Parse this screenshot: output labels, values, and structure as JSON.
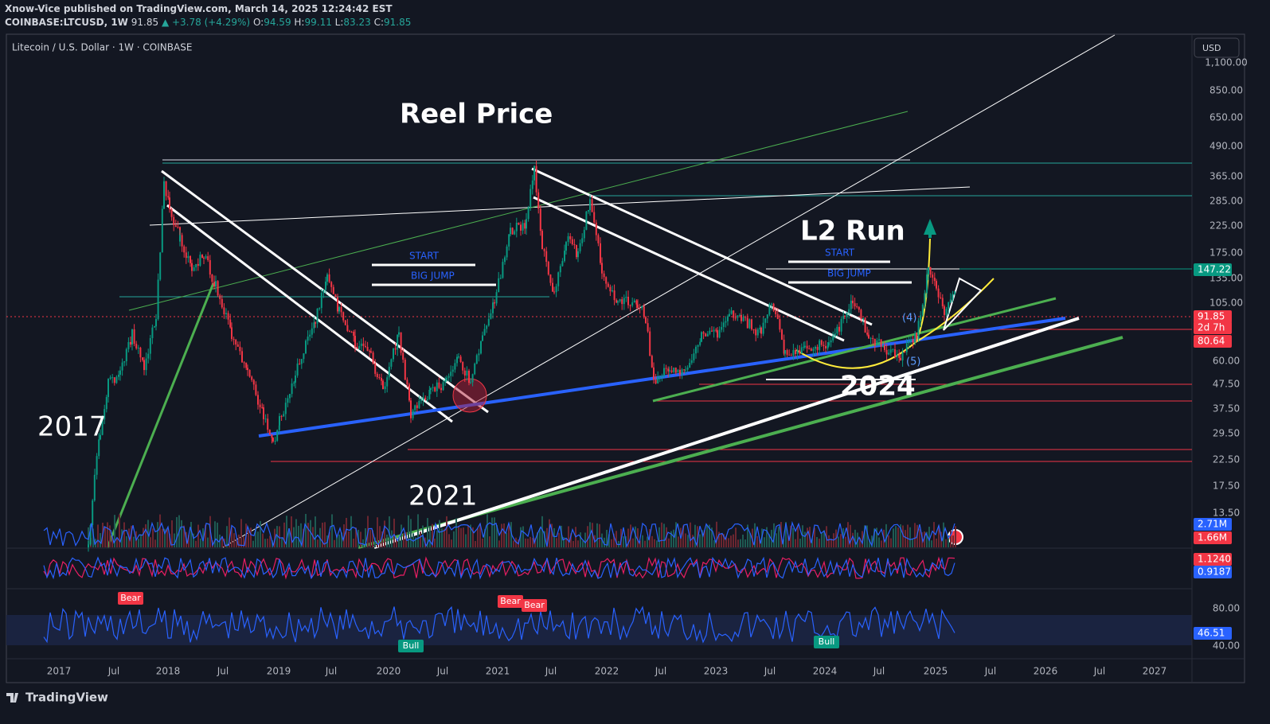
{
  "header": {
    "publisher": "Xnow-Vice published on TradingView.com, March 14, 2025 12:24:42 EST",
    "symbol": "COINBASE:LTCUSD, 1W",
    "price": "91.85",
    "change": "▲ +3.78 (+4.29%)",
    "open_label": "O:",
    "open": "94.59",
    "high_label": "H:",
    "high": "99.11",
    "low_label": "L:",
    "low": "83.23",
    "close_label": "C:",
    "close": "91.85"
  },
  "legend": "Litecoin / U.S. Dollar · 1W · COINBASE",
  "currency": "USD",
  "price_axis": [
    "1,100.00",
    "850.00",
    "650.00",
    "490.00",
    "365.00",
    "285.00",
    "225.00",
    "175.00",
    "135.00",
    "105.00",
    "60.00",
    "47.50",
    "37.50",
    "29.50",
    "22.50",
    "17.50",
    "13.50",
    "80.00",
    "40.00"
  ],
  "badges": [
    {
      "text": "147.22",
      "color": "#089981"
    },
    {
      "text": "91.85",
      "color": "#f23645"
    },
    {
      "text": "2d 7h",
      "color": "#f23645"
    },
    {
      "text": "80.64",
      "color": "#f23645"
    },
    {
      "text": "2.71M",
      "color": "#2962ff"
    },
    {
      "text": "1.66M",
      "color": "#f23645"
    },
    {
      "text": "1.1240",
      "color": "#f23645"
    },
    {
      "text": "0.9187",
      "color": "#2962ff"
    },
    {
      "text": "46.51",
      "color": "#2962ff"
    }
  ],
  "time_axis": [
    "2017",
    "Jul",
    "2018",
    "Jul",
    "2019",
    "Jul",
    "2020",
    "Jul",
    "2021",
    "Jul",
    "2022",
    "Jul",
    "2023",
    "Jul",
    "2024",
    "Jul",
    "2025",
    "Jul",
    "2026",
    "Jul",
    "2027"
  ],
  "annotations": {
    "reel_price": "Reel Price",
    "l2_run": "L2 Run",
    "y2017": "2017",
    "y2021": "2021",
    "y2024": "2024",
    "start_1": "START",
    "big_jump_1": "BIG JUMP",
    "start_2": "START",
    "big_jump_2": "BIG JUMP",
    "wave_4": "(4)",
    "wave_5": "(5)"
  },
  "signals": [
    {
      "text": "Bear",
      "color": "#f23645"
    },
    {
      "text": "Bear",
      "color": "#f23645"
    },
    {
      "text": "Bear",
      "color": "#f23645"
    },
    {
      "text": "Bull",
      "color": "#089981"
    },
    {
      "text": "Bull",
      "color": "#089981"
    }
  ],
  "footer": "TradingView"
}
